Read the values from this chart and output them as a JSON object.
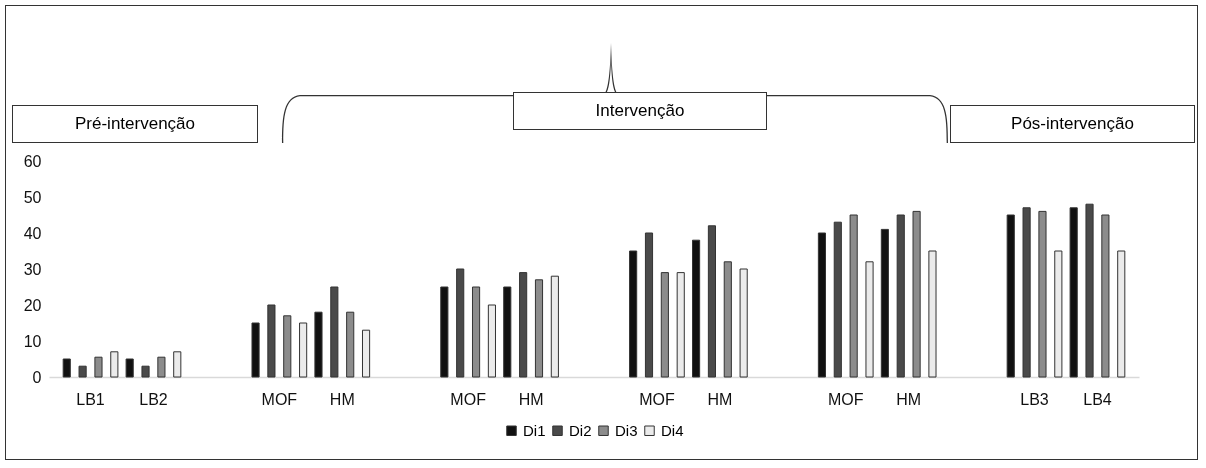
{
  "chart_data": {
    "type": "bar",
    "categories": [
      "LB1",
      "LB2",
      null,
      "MOF",
      "HM",
      null,
      "MOF",
      "HM",
      null,
      "MOF",
      "HM",
      null,
      "MOF",
      "HM",
      null,
      "LB3",
      "LB4"
    ],
    "series": [
      {
        "name": "Di1",
        "color": "#111111",
        "values": [
          5,
          5,
          null,
          15,
          18,
          null,
          25,
          25,
          null,
          35,
          38,
          null,
          40,
          41,
          null,
          45,
          47
        ]
      },
      {
        "name": "Di2",
        "color": "#4a4a4a",
        "values": [
          3,
          3,
          null,
          20,
          25,
          null,
          30,
          29,
          null,
          40,
          42,
          null,
          43,
          45,
          null,
          47,
          48
        ]
      },
      {
        "name": "Di3",
        "color": "#8c8c8c",
        "values": [
          5.5,
          5.5,
          null,
          17,
          18,
          null,
          25,
          27,
          null,
          29,
          32,
          null,
          45,
          46,
          null,
          46,
          45
        ]
      },
      {
        "name": "Di4",
        "color": "#ebebeb",
        "values": [
          7,
          7,
          null,
          15,
          13,
          null,
          20,
          28,
          null,
          29,
          30,
          null,
          32,
          35,
          null,
          35,
          35
        ]
      }
    ],
    "ylim": [
      0,
      60
    ],
    "yticks": [
      0,
      10,
      20,
      30,
      40,
      50,
      60
    ],
    "legend": "bottom",
    "annotations": [
      "Pré-intervenção",
      "Intervenção",
      "Pós-intervenção"
    ]
  }
}
